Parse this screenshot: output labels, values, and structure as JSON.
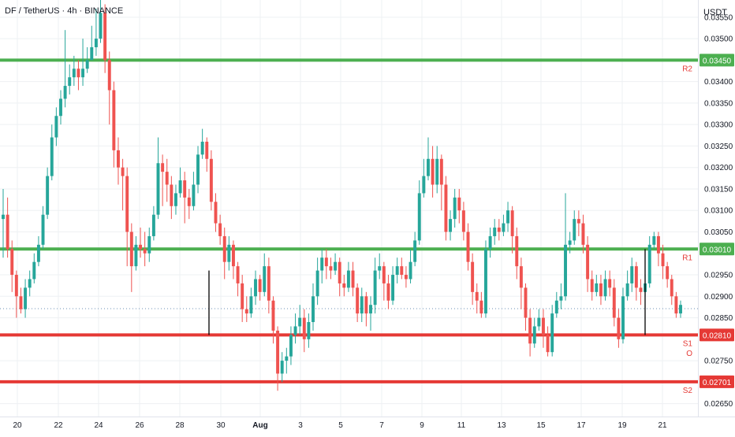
{
  "header": {
    "symbol_title": "DF / TetherUS · 4h · BINANCE",
    "currency": "USDT"
  },
  "colors": {
    "up": "#26a69a",
    "down": "#ef5350",
    "resistance": "#4caf50",
    "support": "#e53935",
    "level_text": "#e53935",
    "grid": "#eef0f3",
    "axis_text": "#131722"
  },
  "chart_data": {
    "type": "candlestick",
    "ylim": [
      0.0262,
      0.0359
    ],
    "price_ticks": [
      "0.03550",
      "0.03500",
      "0.03400",
      "0.03350",
      "0.03300",
      "0.03250",
      "0.03200",
      "0.03150",
      "0.03100",
      "0.03050",
      "0.02950",
      "0.02900",
      "0.02850",
      "0.02750",
      "0.02650"
    ],
    "date_ticks": [
      "20",
      "22",
      "24",
      "26",
      "28",
      "30",
      "Aug",
      "3",
      "5",
      "7",
      "9",
      "11",
      "13",
      "15",
      "17",
      "19",
      "21"
    ],
    "levels": [
      {
        "label": "R2",
        "price": "0.03450",
        "kind": "resistance"
      },
      {
        "label": "R1",
        "price": "0.03010",
        "kind": "resistance"
      },
      {
        "label": "S1",
        "price": "0.02810",
        "kind": "support"
      },
      {
        "label": "S2",
        "price": "0.02701",
        "kind": "support"
      }
    ],
    "level_annotation": "O",
    "dotted_price_line": 0.0288,
    "vertical_markers": [
      {
        "date": "Jul 29",
        "from": 0.0281,
        "to": 0.0296
      },
      {
        "date": "Aug 20",
        "from": 0.0281,
        "to": 0.0301
      }
    ],
    "candles": [
      [
        0.0308,
        0.0309,
        0.0315,
        0.0299
      ],
      [
        0.0309,
        0.0301,
        0.0313,
        0.0299
      ],
      [
        0.0301,
        0.0295,
        0.0303,
        0.0291
      ],
      [
        0.0295,
        0.029,
        0.0296,
        0.0285
      ],
      [
        0.029,
        0.0287,
        0.0292,
        0.0286
      ],
      [
        0.0287,
        0.0292,
        0.0294,
        0.0285
      ],
      [
        0.0292,
        0.0294,
        0.0296,
        0.029
      ],
      [
        0.0294,
        0.0298,
        0.03,
        0.0293
      ],
      [
        0.0298,
        0.0302,
        0.0304,
        0.0297
      ],
      [
        0.0302,
        0.0309,
        0.0311,
        0.0301
      ],
      [
        0.0309,
        0.0318,
        0.032,
        0.0308
      ],
      [
        0.0318,
        0.0327,
        0.033,
        0.0317
      ],
      [
        0.0327,
        0.0332,
        0.0334,
        0.0325
      ],
      [
        0.0332,
        0.0336,
        0.0338,
        0.033
      ],
      [
        0.0336,
        0.0339,
        0.0352,
        0.0334
      ],
      [
        0.0339,
        0.0341,
        0.0344,
        0.0337
      ],
      [
        0.0341,
        0.0343,
        0.0346,
        0.0339
      ],
      [
        0.0343,
        0.0341,
        0.0345,
        0.0338
      ],
      [
        0.0341,
        0.0343,
        0.035,
        0.0339
      ],
      [
        0.0343,
        0.0345,
        0.0348,
        0.0342
      ],
      [
        0.0345,
        0.0348,
        0.0353,
        0.0346
      ],
      [
        0.0348,
        0.035,
        0.0357,
        0.0346
      ],
      [
        0.035,
        0.0356,
        0.0359,
        0.0349
      ],
      [
        0.0356,
        0.0345,
        0.0358,
        0.0342
      ],
      [
        0.0345,
        0.0338,
        0.0347,
        0.033
      ],
      [
        0.0338,
        0.0324,
        0.034,
        0.032
      ],
      [
        0.0324,
        0.032,
        0.0327,
        0.0316
      ],
      [
        0.032,
        0.0318,
        0.0322,
        0.031
      ],
      [
        0.0318,
        0.0305,
        0.032,
        0.0297
      ],
      [
        0.0305,
        0.0297,
        0.0307,
        0.0291
      ],
      [
        0.0297,
        0.0302,
        0.0304,
        0.0296
      ],
      [
        0.0302,
        0.0301,
        0.0306,
        0.0299
      ],
      [
        0.0301,
        0.03,
        0.0305,
        0.0297
      ],
      [
        0.03,
        0.0304,
        0.0306,
        0.0298
      ],
      [
        0.0304,
        0.0309,
        0.0311,
        0.0303
      ],
      [
        0.0309,
        0.0321,
        0.0327,
        0.0308
      ],
      [
        0.0321,
        0.0319,
        0.0323,
        0.0311
      ],
      [
        0.0319,
        0.0316,
        0.0322,
        0.0312
      ],
      [
        0.0316,
        0.0311,
        0.0318,
        0.0308
      ],
      [
        0.0311,
        0.0314,
        0.0316,
        0.0309
      ],
      [
        0.0314,
        0.0317,
        0.032,
        0.0313
      ],
      [
        0.0317,
        0.0313,
        0.0319,
        0.0307
      ],
      [
        0.0313,
        0.0311,
        0.0315,
        0.0308
      ],
      [
        0.0311,
        0.0316,
        0.0319,
        0.031
      ],
      [
        0.0316,
        0.0323,
        0.0325,
        0.0314
      ],
      [
        0.0323,
        0.0326,
        0.0329,
        0.0322
      ],
      [
        0.0326,
        0.0322,
        0.0327,
        0.0319
      ],
      [
        0.0322,
        0.0312,
        0.0324,
        0.031
      ],
      [
        0.0312,
        0.0307,
        0.0314,
        0.0305
      ],
      [
        0.0307,
        0.0304,
        0.0309,
        0.0302
      ],
      [
        0.0304,
        0.0298,
        0.0306,
        0.0294
      ],
      [
        0.0298,
        0.0302,
        0.0304,
        0.0296
      ],
      [
        0.0302,
        0.0297,
        0.0303,
        0.0294
      ],
      [
        0.0297,
        0.0293,
        0.0298,
        0.029
      ],
      [
        0.0293,
        0.0287,
        0.0295,
        0.0284
      ],
      [
        0.0287,
        0.0286,
        0.029,
        0.0284
      ],
      [
        0.0286,
        0.029,
        0.0292,
        0.0285
      ],
      [
        0.029,
        0.0294,
        0.0296,
        0.0288
      ],
      [
        0.0294,
        0.0291,
        0.0295,
        0.0289
      ],
      [
        0.0291,
        0.0297,
        0.03,
        0.029
      ],
      [
        0.0297,
        0.0289,
        0.0299,
        0.0286
      ],
      [
        0.0289,
        0.0282,
        0.029,
        0.0279
      ],
      [
        0.0282,
        0.0272,
        0.0283,
        0.0268
      ],
      [
        0.0272,
        0.0275,
        0.0277,
        0.027
      ],
      [
        0.0275,
        0.0276,
        0.0278,
        0.0272
      ],
      [
        0.0276,
        0.0281,
        0.0283,
        0.0274
      ],
      [
        0.0281,
        0.0283,
        0.0286,
        0.0279
      ],
      [
        0.0283,
        0.0285,
        0.0288,
        0.0281
      ],
      [
        0.0285,
        0.028,
        0.0287,
        0.0277
      ],
      [
        0.028,
        0.0284,
        0.0286,
        0.0278
      ],
      [
        0.0284,
        0.029,
        0.0293,
        0.0282
      ],
      [
        0.029,
        0.0296,
        0.0299,
        0.0288
      ],
      [
        0.0296,
        0.0299,
        0.0301,
        0.0293
      ],
      [
        0.0299,
        0.0297,
        0.0301,
        0.0294
      ],
      [
        0.0297,
        0.0296,
        0.0299,
        0.0294
      ],
      [
        0.0296,
        0.0298,
        0.03,
        0.0295
      ],
      [
        0.0298,
        0.0293,
        0.0299,
        0.029
      ],
      [
        0.0293,
        0.0292,
        0.0295,
        0.029
      ],
      [
        0.0292,
        0.0296,
        0.0298,
        0.0291
      ],
      [
        0.0296,
        0.0292,
        0.0298,
        0.029
      ],
      [
        0.0292,
        0.0286,
        0.0293,
        0.0284
      ],
      [
        0.0286,
        0.029,
        0.0292,
        0.0284
      ],
      [
        0.029,
        0.0286,
        0.0291,
        0.0283
      ],
      [
        0.0286,
        0.0288,
        0.029,
        0.0282
      ],
      [
        0.0288,
        0.0296,
        0.0299,
        0.0286
      ],
      [
        0.0296,
        0.0297,
        0.03,
        0.0294
      ],
      [
        0.0297,
        0.0293,
        0.0298,
        0.0289
      ],
      [
        0.0293,
        0.0289,
        0.0295,
        0.0287
      ],
      [
        0.0289,
        0.0295,
        0.0297,
        0.0288
      ],
      [
        0.0295,
        0.0297,
        0.0299,
        0.0293
      ],
      [
        0.0297,
        0.0295,
        0.0299,
        0.0294
      ],
      [
        0.0295,
        0.0294,
        0.0297,
        0.0292
      ],
      [
        0.0294,
        0.0298,
        0.0301,
        0.0293
      ],
      [
        0.0298,
        0.0303,
        0.0305,
        0.0297
      ],
      [
        0.0303,
        0.0314,
        0.0317,
        0.0302
      ],
      [
        0.0314,
        0.0318,
        0.0322,
        0.0313
      ],
      [
        0.0318,
        0.0322,
        0.0327,
        0.0317
      ],
      [
        0.0322,
        0.0316,
        0.0325,
        0.0313
      ],
      [
        0.0316,
        0.0322,
        0.0325,
        0.0314
      ],
      [
        0.0322,
        0.0316,
        0.0323,
        0.031
      ],
      [
        0.0316,
        0.0305,
        0.0318,
        0.0303
      ],
      [
        0.0305,
        0.0308,
        0.031,
        0.0303
      ],
      [
        0.0308,
        0.0313,
        0.0315,
        0.0306
      ],
      [
        0.0313,
        0.031,
        0.0315,
        0.0307
      ],
      [
        0.031,
        0.0305,
        0.0312,
        0.0303
      ],
      [
        0.0305,
        0.0298,
        0.0307,
        0.0296
      ],
      [
        0.0298,
        0.0291,
        0.03,
        0.0288
      ],
      [
        0.0291,
        0.0289,
        0.0293,
        0.0286
      ],
      [
        0.0289,
        0.0286,
        0.0291,
        0.0285
      ],
      [
        0.0286,
        0.0301,
        0.0303,
        0.0285
      ],
      [
        0.0301,
        0.0304,
        0.0306,
        0.0299
      ],
      [
        0.0304,
        0.0306,
        0.0308,
        0.0302
      ],
      [
        0.0306,
        0.0305,
        0.0308,
        0.0303
      ],
      [
        0.0305,
        0.0307,
        0.0309,
        0.0304
      ],
      [
        0.0307,
        0.031,
        0.0312,
        0.0305
      ],
      [
        0.031,
        0.0304,
        0.0311,
        0.03
      ],
      [
        0.0304,
        0.0297,
        0.0306,
        0.0294
      ],
      [
        0.0297,
        0.0292,
        0.0299,
        0.0287
      ],
      [
        0.0292,
        0.0285,
        0.0293,
        0.0282
      ],
      [
        0.0285,
        0.0279,
        0.0287,
        0.0276
      ],
      [
        0.0279,
        0.0283,
        0.0285,
        0.0278
      ],
      [
        0.0283,
        0.0285,
        0.0287,
        0.0282
      ],
      [
        0.0285,
        0.0281,
        0.0287,
        0.0278
      ],
      [
        0.0281,
        0.0277,
        0.0283,
        0.0276
      ],
      [
        0.0277,
        0.0286,
        0.0288,
        0.0276
      ],
      [
        0.0286,
        0.0289,
        0.0291,
        0.0285
      ],
      [
        0.0289,
        0.029,
        0.0293,
        0.0287
      ],
      [
        0.029,
        0.0302,
        0.0314,
        0.0289
      ],
      [
        0.0302,
        0.0303,
        0.0305,
        0.03
      ],
      [
        0.0303,
        0.0308,
        0.031,
        0.0302
      ],
      [
        0.0308,
        0.0307,
        0.031,
        0.0304
      ],
      [
        0.0307,
        0.0302,
        0.0309,
        0.03
      ],
      [
        0.0302,
        0.0294,
        0.0304,
        0.0291
      ],
      [
        0.0294,
        0.0291,
        0.0296,
        0.0289
      ],
      [
        0.0291,
        0.0293,
        0.0295,
        0.029
      ],
      [
        0.0293,
        0.029,
        0.0295,
        0.0288
      ],
      [
        0.029,
        0.0294,
        0.0296,
        0.0289
      ],
      [
        0.0294,
        0.0292,
        0.0296,
        0.029
      ],
      [
        0.0292,
        0.0285,
        0.0294,
        0.0283
      ],
      [
        0.0285,
        0.028,
        0.0287,
        0.0278
      ],
      [
        0.028,
        0.029,
        0.0292,
        0.0279
      ],
      [
        0.029,
        0.0293,
        0.0296,
        0.0289
      ],
      [
        0.0293,
        0.0297,
        0.0299,
        0.0291
      ],
      [
        0.0297,
        0.0292,
        0.0298,
        0.0289
      ],
      [
        0.0292,
        0.0291,
        0.0294,
        0.0288
      ],
      [
        0.0291,
        0.0293,
        0.0295,
        0.029
      ],
      [
        0.0293,
        0.0302,
        0.0304,
        0.0292
      ],
      [
        0.0302,
        0.0304,
        0.0305,
        0.0301
      ],
      [
        0.0304,
        0.03,
        0.0305,
        0.0297
      ],
      [
        0.03,
        0.0297,
        0.0302,
        0.0294
      ],
      [
        0.0297,
        0.0294,
        0.0298,
        0.0292
      ],
      [
        0.0294,
        0.029,
        0.0295,
        0.0288
      ],
      [
        0.029,
        0.0286,
        0.0291,
        0.0285
      ],
      [
        0.0286,
        0.0288,
        0.0289,
        0.0285
      ]
    ]
  }
}
